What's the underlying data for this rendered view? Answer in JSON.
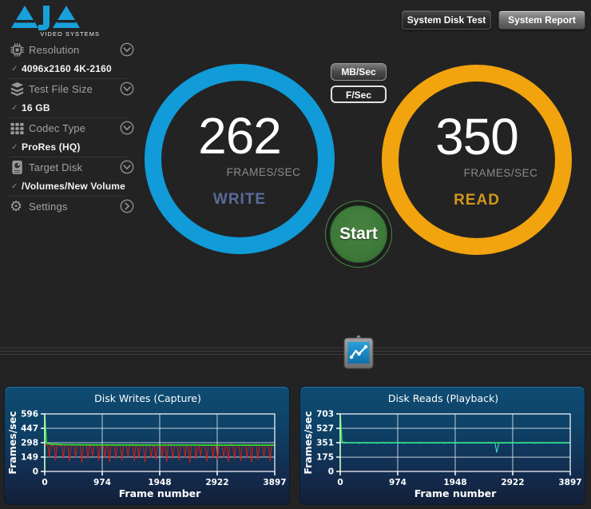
{
  "app": {
    "logo_text": "AJA",
    "logo_subtext": "VIDEO SYSTEMS"
  },
  "header": {
    "buttons": [
      {
        "label": "System Disk Test"
      },
      {
        "label": "System Report"
      }
    ]
  },
  "sidebar": {
    "items": [
      {
        "id": "resolution",
        "icon": "chip-icon",
        "label": "Resolution",
        "chevron": "down",
        "value": "4096x2160 4K-2160"
      },
      {
        "id": "test-file-size",
        "icon": "layers-icon",
        "label": "Test File Size",
        "chevron": "down",
        "value": "16 GB"
      },
      {
        "id": "codec-type",
        "icon": "grid-icon",
        "label": "Codec Type",
        "chevron": "down",
        "value": "ProRes (HQ)"
      },
      {
        "id": "target-disk",
        "icon": "disk-icon",
        "label": "Target Disk",
        "chevron": "down",
        "value": "/Volumes/New Volume"
      },
      {
        "id": "settings",
        "icon": "gear-icon",
        "label": "Settings",
        "chevron": "right",
        "value": null
      }
    ]
  },
  "unit_toggle": {
    "options": [
      {
        "label": "MB/Sec",
        "selected": false
      },
      {
        "label": "F/Sec",
        "selected": true
      }
    ]
  },
  "gauges": {
    "write": {
      "value": "262",
      "unit": "FRAMES/SEC",
      "label": "WRITE"
    },
    "read": {
      "value": "350",
      "unit": "FRAMES/SEC",
      "label": "READ"
    }
  },
  "start_button": {
    "label": "Start"
  },
  "colors": {
    "background": "#232323",
    "logo_blue": "#18a0db",
    "write_ring": "#119bd8",
    "read_ring": "#f2a40e",
    "write_label": "#5a6a9b",
    "read_label": "#d3961b",
    "start_green": "#3e7b3a",
    "chart_red": "#e8190b",
    "chart_green": "#2ee52a",
    "chart_cyan": "#3be8cf",
    "panel_top": "#0f4c72",
    "panel_bottom": "#131f38"
  },
  "chart_data": [
    {
      "type": "line",
      "title": "Disk Writes (Capture)",
      "xlabel": "Frame number",
      "ylabel": "Frames/sec",
      "xlim": [
        0,
        3897
      ],
      "ylim": [
        0,
        596
      ],
      "xticks": [
        0,
        974,
        1948,
        2922,
        3897
      ],
      "yticks": [
        0,
        149,
        298,
        447,
        596
      ],
      "grid": true,
      "legend": "none",
      "series": [
        {
          "name": "write-rate",
          "color": "#e8190b",
          "width": 1,
          "values": [
            285,
            270,
            278,
            150,
            272,
            264,
            280,
            115,
            268,
            275,
            262,
            281,
            135,
            270,
            277,
            258,
            105,
            273,
            284,
            266,
            148,
            271,
            279,
            263,
            95,
            276,
            268,
            282,
            128,
            270,
            265,
            158,
            277,
            269,
            274,
            112,
            280,
            262,
            271,
            142,
            278,
            266,
            100,
            275,
            283,
            259,
            132,
            272,
            280,
            264,
            118,
            270,
            276,
            261,
            152,
            279,
            267,
            285,
            108,
            273,
            268,
            138,
            274,
            281,
            257,
            98,
            271,
            278,
            263,
            145,
            276,
            269,
            122,
            282,
            265,
            272,
            155,
            268,
            279,
            102,
            274,
            286,
            260,
            135,
            270,
            277,
            250,
            115,
            272,
            280,
            266,
            148,
            278,
            261,
            92,
            275,
            269,
            283,
            125,
            271,
            264,
            160,
            272,
            279,
            255,
            105,
            277,
            268,
            284,
            138,
            270,
            262,
            118,
            281,
            274,
            258,
            145,
            269,
            276,
            100,
            273,
            285,
            263,
            130,
            271,
            278,
            252,
            110,
            274,
            282,
            267,
            142,
            279,
            260,
            96,
            272,
            270,
            286,
            120,
            268,
            275,
            265,
            152,
            280,
            270,
            256,
            108,
            274,
            278,
            262
          ]
        },
        {
          "name": "write-average",
          "color": "#2ee52a",
          "width": 1.6,
          "points": [
            [
              0,
              0
            ],
            [
              0,
              596
            ],
            [
              30,
              292
            ],
            [
              100,
              283
            ],
            [
              300,
              278
            ],
            [
              600,
              276
            ],
            [
              1000,
              275
            ],
            [
              1500,
              274
            ],
            [
              2000,
              273
            ],
            [
              2500,
              273
            ],
            [
              3000,
              272
            ],
            [
              3500,
              272
            ],
            [
              3897,
              272
            ]
          ]
        }
      ]
    },
    {
      "type": "line",
      "title": "Disk Reads (Playback)",
      "xlabel": "Frame number",
      "ylabel": "Frames/sec",
      "xlim": [
        0,
        3897
      ],
      "ylim": [
        0,
        703
      ],
      "xticks": [
        0,
        974,
        1948,
        2922,
        3897
      ],
      "yticks": [
        0,
        175,
        351,
        527,
        703
      ],
      "grid": true,
      "legend": "none",
      "series": [
        {
          "name": "read-average",
          "color": "#2ee52a",
          "width": 1.6,
          "points": [
            [
              0,
              0
            ],
            [
              0,
              703
            ],
            [
              30,
              358
            ],
            [
              100,
              352
            ],
            [
              500,
              351
            ],
            [
              2000,
              351
            ],
            [
              3897,
              351
            ]
          ]
        },
        {
          "name": "read-rate",
          "color": "#3be8cf",
          "width": 1,
          "values": [
            350,
            356,
            344,
            352,
            347,
            354,
            346,
            351,
            349,
            355,
            343,
            352,
            348,
            356,
            345,
            350,
            353,
            347,
            351,
            344,
            352,
            348,
            355,
            346,
            350,
            354,
            345,
            351,
            348,
            353,
            346,
            352,
            349,
            344,
            355,
            350,
            347,
            353,
            345,
            351,
            348,
            356,
            344,
            350,
            352,
            346,
            354,
            348,
            351,
            345,
            353,
            347,
            350,
            356,
            343,
            351,
            348,
            354,
            346,
            352,
            349,
            345,
            353,
            350,
            347,
            355,
            344,
            351,
            348,
            352,
            346,
            350,
            354,
            347,
            351,
            345,
            349,
            356,
            343,
            350,
            352,
            232,
            348,
            353,
            346,
            351,
            347,
            355,
            344,
            350,
            348,
            352,
            345,
            351,
            349,
            354,
            346,
            350,
            353,
            347,
            351,
            344,
            352,
            348,
            355,
            345,
            350,
            347,
            353,
            349,
            346,
            352,
            348,
            351,
            344,
            354,
            350,
            347,
            352,
            349
          ]
        }
      ]
    }
  ]
}
